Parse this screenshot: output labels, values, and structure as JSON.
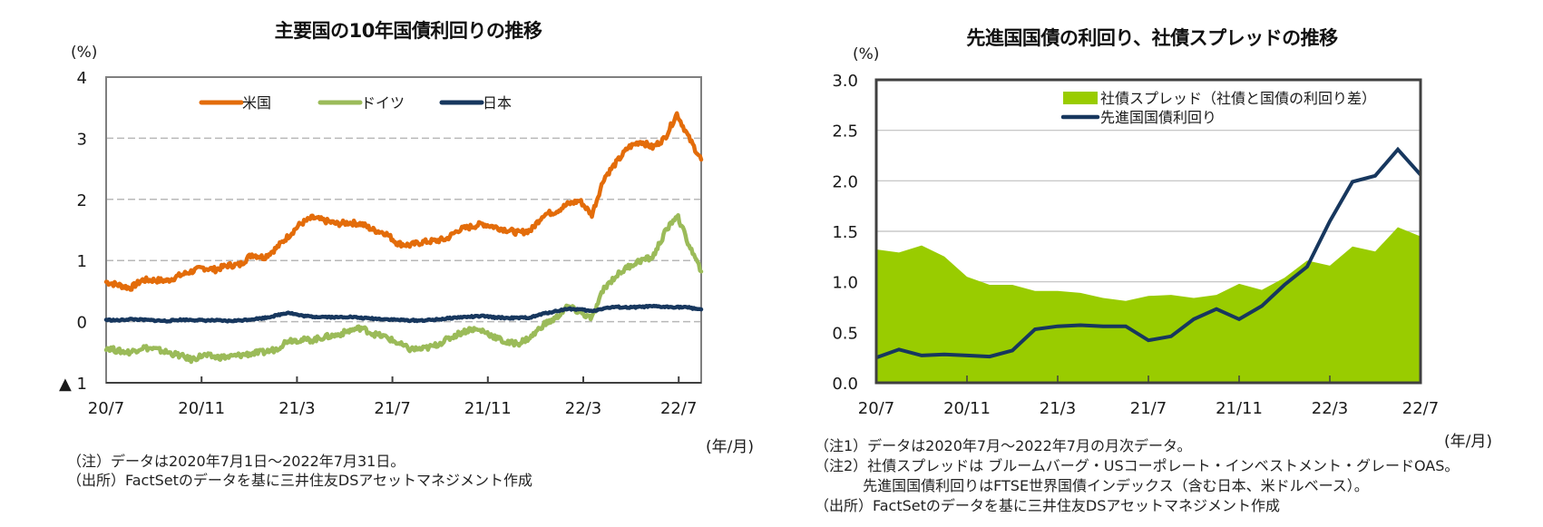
{
  "chart_data": [
    {
      "type": "line",
      "title": "主要国の10年国債利回りの推移",
      "ylabel": "(%)",
      "xlabel": "(年/月)",
      "ylim": [
        -1,
        4
      ],
      "yticks": [
        4,
        3,
        2,
        1,
        0,
        -1
      ],
      "ytick_labels": [
        "4",
        "3",
        "2",
        "1",
        "0",
        "▲ 1"
      ],
      "xticks": [
        "20/7",
        "20/11",
        "21/3",
        "21/7",
        "21/11",
        "22/3",
        "22/7"
      ],
      "x_start": "2020/7/1",
      "x_end": "2022/7/31",
      "x_sampling": "half-month approximations of daily data (index 0 = 2020/7 first half)",
      "grid": "horizontal dashed",
      "legend_position": "top-center",
      "series": [
        {
          "name": "米国",
          "color": "#E36C0A",
          "values": [
            0.65,
            0.6,
            0.55,
            0.68,
            0.68,
            0.67,
            0.75,
            0.82,
            0.88,
            0.85,
            0.92,
            0.93,
            1.1,
            1.05,
            1.2,
            1.4,
            1.6,
            1.7,
            1.65,
            1.6,
            1.62,
            1.6,
            1.5,
            1.45,
            1.28,
            1.25,
            1.3,
            1.32,
            1.35,
            1.5,
            1.55,
            1.6,
            1.55,
            1.5,
            1.45,
            1.5,
            1.75,
            1.8,
            1.92,
            1.98,
            1.75,
            2.35,
            2.6,
            2.85,
            2.95,
            2.85,
            3.0,
            3.4,
            3.0,
            2.65
          ]
        },
        {
          "name": "ドイツ",
          "color": "#9BBB59",
          "values": [
            -0.42,
            -0.48,
            -0.5,
            -0.42,
            -0.45,
            -0.5,
            -0.55,
            -0.62,
            -0.55,
            -0.58,
            -0.58,
            -0.55,
            -0.52,
            -0.5,
            -0.45,
            -0.3,
            -0.3,
            -0.3,
            -0.25,
            -0.22,
            -0.15,
            -0.1,
            -0.2,
            -0.25,
            -0.35,
            -0.45,
            -0.45,
            -0.4,
            -0.3,
            -0.2,
            -0.12,
            -0.15,
            -0.25,
            -0.35,
            -0.35,
            -0.25,
            -0.05,
            0.05,
            0.25,
            0.15,
            0.05,
            0.55,
            0.75,
            0.9,
            1.0,
            1.05,
            1.45,
            1.75,
            1.25,
            0.82
          ]
        },
        {
          "name": "日本",
          "color": "#17375E",
          "values": [
            0.03,
            0.02,
            0.04,
            0.03,
            0.02,
            0.01,
            0.03,
            0.03,
            0.02,
            0.02,
            0.01,
            0.02,
            0.04,
            0.06,
            0.1,
            0.15,
            0.1,
            0.08,
            0.08,
            0.07,
            0.08,
            0.06,
            0.05,
            0.04,
            0.03,
            0.02,
            0.02,
            0.03,
            0.05,
            0.07,
            0.08,
            0.09,
            0.07,
            0.06,
            0.06,
            0.07,
            0.13,
            0.17,
            0.21,
            0.2,
            0.17,
            0.22,
            0.24,
            0.23,
            0.24,
            0.25,
            0.24,
            0.24,
            0.23,
            0.2
          ]
        }
      ],
      "notes": [
        "（注）データは2020年7月1日～2022年7月31日。",
        "（出所）FactSetのデータを基に三井住友DSアセットマネジメント作成"
      ]
    },
    {
      "type": "area",
      "title": "先進国国債の利回り、社債スプレッドの推移",
      "ylabel": "(%)",
      "xlabel": "(年/月)",
      "ylim": [
        0,
        3.0
      ],
      "yticks": [
        3.0,
        2.5,
        2.0,
        1.5,
        1.0,
        0.5,
        0.0
      ],
      "ytick_labels": [
        "3.0",
        "2.5",
        "2.0",
        "1.5",
        "1.0",
        "0.5",
        "0.0"
      ],
      "xticks": [
        "20/7",
        "20/11",
        "21/3",
        "21/7",
        "21/11",
        "22/3",
        "22/7"
      ],
      "x": [
        "20/7",
        "20/8",
        "20/9",
        "20/10",
        "20/11",
        "20/12",
        "21/1",
        "21/2",
        "21/3",
        "21/4",
        "21/5",
        "21/6",
        "21/7",
        "21/8",
        "21/9",
        "21/10",
        "21/11",
        "21/12",
        "22/1",
        "22/2",
        "22/3",
        "22/4",
        "22/5",
        "22/6",
        "22/7"
      ],
      "grid": "horizontal solid",
      "legend_position": "top-right",
      "series": [
        {
          "name": "社債スプレッド（社債と国債の利回り差）",
          "kind": "area",
          "color": "#99CC00",
          "values": [
            1.32,
            1.29,
            1.36,
            1.25,
            1.05,
            0.97,
            0.97,
            0.91,
            0.91,
            0.89,
            0.84,
            0.81,
            0.86,
            0.87,
            0.84,
            0.87,
            0.98,
            0.92,
            1.04,
            1.21,
            1.16,
            1.35,
            1.3,
            1.54,
            1.45
          ]
        },
        {
          "name": "先進国国債利回り",
          "kind": "line",
          "color": "#17375E",
          "values": [
            0.25,
            0.33,
            0.27,
            0.28,
            0.27,
            0.26,
            0.32,
            0.53,
            0.56,
            0.57,
            0.56,
            0.56,
            0.42,
            0.46,
            0.63,
            0.73,
            0.63,
            0.76,
            0.97,
            1.15,
            1.6,
            1.99,
            2.05,
            2.31,
            2.06
          ]
        }
      ],
      "notes": [
        "（注1）データは2020年7月～2022年7月の月次データ。",
        "（注2）社債スプレッドは ブルームバーグ・USコーポレート・インベストメント・グレードOAS。",
        "　　　 先進国国債利回りはFTSE世界国債インデックス（含む日本、米ドルベース）。",
        "（出所）FactSetのデータを基に三井住友DSアセットマネジメント作成"
      ]
    }
  ]
}
